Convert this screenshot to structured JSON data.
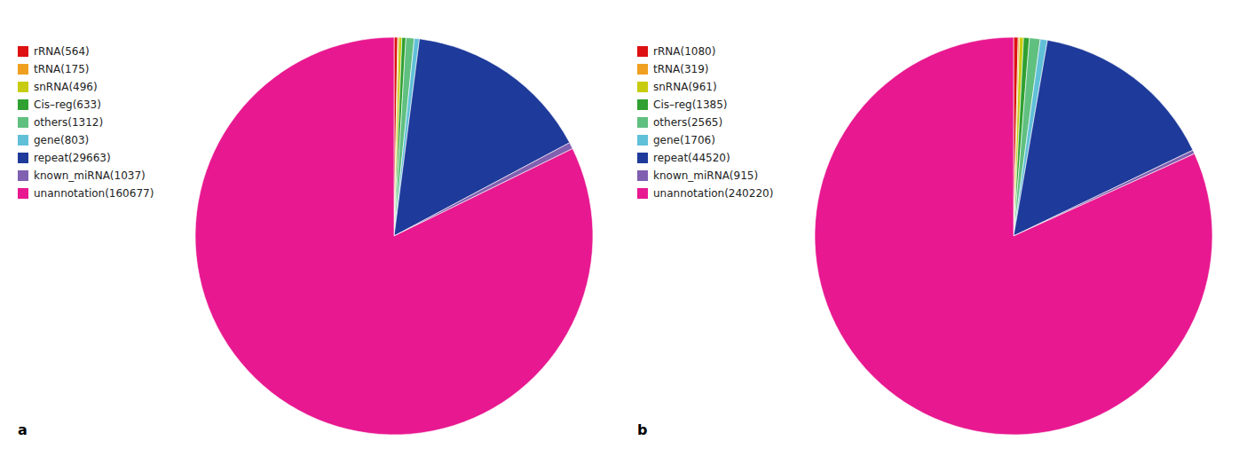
{
  "chart_data": [
    {
      "type": "pie",
      "title": "a",
      "categories": [
        "rRNA(564)",
        "tRNA(175)",
        "snRNA(496)",
        "Cis–reg(633)",
        "others(1312)",
        "gene(803)",
        "repeat(29663)",
        "known_miRNA(1037)",
        "unannotation(160677)"
      ],
      "values": [
        564,
        175,
        496,
        633,
        1312,
        803,
        29663,
        1037,
        160677
      ],
      "colors": [
        "#dd1111",
        "#f0a020",
        "#c8cc10",
        "#30a030",
        "#60c080",
        "#60c0d8",
        "#1e3a9a",
        "#8060b0",
        "#e81890"
      ],
      "legend": "left"
    },
    {
      "type": "pie",
      "title": "b",
      "categories": [
        "rRNA(1080)",
        "tRNA(319)",
        "snRNA(961)",
        "Cis–reg(1385)",
        "others(2565)",
        "gene(1706)",
        "repeat(44520)",
        "known_miRNA(915)",
        "unannotation(240220)"
      ],
      "values": [
        1080,
        319,
        961,
        1385,
        2565,
        1706,
        44520,
        915,
        240220
      ],
      "colors": [
        "#dd1111",
        "#f0a020",
        "#c8cc10",
        "#30a030",
        "#60c080",
        "#60c0d8",
        "#1e3a9a",
        "#8060b0",
        "#e81890"
      ],
      "legend": "left"
    }
  ]
}
